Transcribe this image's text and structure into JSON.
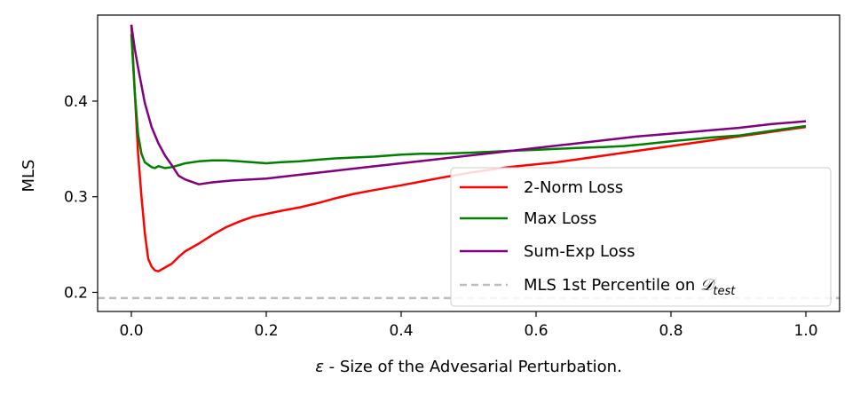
{
  "chart_data": {
    "type": "line",
    "xlabel_symbol": "ε",
    "xlabel_text": " - Size of the Advesarial Perturbation.",
    "ylabel": "MLS",
    "xlim": [
      -0.05,
      1.05
    ],
    "ylim": [
      0.18,
      0.49
    ],
    "x_ticks": [
      0.0,
      0.2,
      0.4,
      0.6,
      0.8,
      1.0
    ],
    "x_tick_labels": [
      "0.0",
      "0.2",
      "0.4",
      "0.6",
      "0.8",
      "1.0"
    ],
    "y_ticks": [
      0.2,
      0.3,
      0.4
    ],
    "y_tick_labels": [
      "0.2",
      "0.3",
      "0.4"
    ],
    "grid": false,
    "legend_position": "lower-right",
    "series": [
      {
        "name": "2-Norm Loss",
        "color": "#ff0000",
        "style": "solid",
        "x": [
          0.0,
          0.005,
          0.01,
          0.015,
          0.02,
          0.025,
          0.03,
          0.035,
          0.04,
          0.045,
          0.05,
          0.06,
          0.07,
          0.08,
          0.1,
          0.12,
          0.14,
          0.16,
          0.18,
          0.2,
          0.22,
          0.25,
          0.28,
          0.3,
          0.33,
          0.36,
          0.4,
          0.43,
          0.46,
          0.5,
          0.53,
          0.56,
          0.6,
          0.63,
          0.66,
          0.7,
          0.73,
          0.76,
          0.8,
          0.83,
          0.86,
          0.9,
          0.93,
          0.96,
          1.0
        ],
        "y": [
          0.48,
          0.41,
          0.345,
          0.3,
          0.262,
          0.235,
          0.227,
          0.223,
          0.222,
          0.224,
          0.226,
          0.23,
          0.237,
          0.243,
          0.251,
          0.26,
          0.268,
          0.274,
          0.279,
          0.282,
          0.285,
          0.289,
          0.294,
          0.298,
          0.303,
          0.307,
          0.312,
          0.316,
          0.32,
          0.325,
          0.328,
          0.331,
          0.334,
          0.336,
          0.339,
          0.343,
          0.346,
          0.349,
          0.353,
          0.356,
          0.359,
          0.363,
          0.366,
          0.369,
          0.373
        ]
      },
      {
        "name": "Max Loss",
        "color": "#008000",
        "style": "solid",
        "x": [
          0.0,
          0.005,
          0.01,
          0.015,
          0.02,
          0.03,
          0.035,
          0.04,
          0.05,
          0.06,
          0.07,
          0.08,
          0.1,
          0.12,
          0.14,
          0.16,
          0.18,
          0.2,
          0.22,
          0.25,
          0.28,
          0.3,
          0.33,
          0.36,
          0.4,
          0.43,
          0.46,
          0.5,
          0.53,
          0.56,
          0.6,
          0.63,
          0.66,
          0.7,
          0.73,
          0.76,
          0.8,
          0.83,
          0.86,
          0.9,
          0.93,
          0.96,
          1.0
        ],
        "y": [
          0.47,
          0.41,
          0.365,
          0.345,
          0.336,
          0.331,
          0.33,
          0.332,
          0.33,
          0.331,
          0.333,
          0.335,
          0.337,
          0.338,
          0.338,
          0.337,
          0.336,
          0.335,
          0.336,
          0.337,
          0.339,
          0.34,
          0.341,
          0.342,
          0.344,
          0.345,
          0.345,
          0.346,
          0.347,
          0.348,
          0.349,
          0.35,
          0.351,
          0.352,
          0.353,
          0.355,
          0.358,
          0.36,
          0.362,
          0.364,
          0.367,
          0.37,
          0.374
        ]
      },
      {
        "name": "Sum-Exp Loss",
        "color": "#800080",
        "style": "solid",
        "x": [
          0.0,
          0.005,
          0.01,
          0.02,
          0.03,
          0.04,
          0.05,
          0.06,
          0.07,
          0.08,
          0.1,
          0.12,
          0.15,
          0.2,
          0.25,
          0.3,
          0.35,
          0.4,
          0.45,
          0.5,
          0.55,
          0.6,
          0.65,
          0.7,
          0.75,
          0.8,
          0.85,
          0.9,
          0.95,
          1.0
        ],
        "y": [
          0.48,
          0.455,
          0.435,
          0.398,
          0.373,
          0.356,
          0.343,
          0.333,
          0.322,
          0.318,
          0.313,
          0.315,
          0.317,
          0.319,
          0.323,
          0.327,
          0.331,
          0.335,
          0.339,
          0.343,
          0.347,
          0.351,
          0.355,
          0.359,
          0.363,
          0.366,
          0.369,
          0.372,
          0.376,
          0.379
        ]
      },
      {
        "name": "MLS 1st Percentile on ",
        "name_math": "𝒟",
        "name_sub": "test",
        "color": "#bdbdbd",
        "style": "dashed",
        "x": [
          -0.05,
          1.05
        ],
        "y": [
          0.194,
          0.194
        ]
      }
    ]
  }
}
